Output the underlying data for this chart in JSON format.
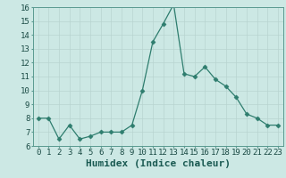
{
  "x": [
    0,
    1,
    2,
    3,
    4,
    5,
    6,
    7,
    8,
    9,
    10,
    11,
    12,
    13,
    14,
    15,
    16,
    17,
    18,
    19,
    20,
    21,
    22,
    23
  ],
  "y": [
    8.0,
    8.0,
    6.5,
    7.5,
    6.5,
    6.7,
    7.0,
    7.0,
    7.0,
    7.5,
    10.0,
    13.5,
    14.8,
    16.2,
    11.2,
    11.0,
    11.7,
    10.8,
    10.3,
    9.5,
    8.3,
    8.0,
    7.5,
    7.5
  ],
  "xlabel": "Humidex (Indice chaleur)",
  "ylim": [
    6,
    16
  ],
  "xlim_min": -0.5,
  "xlim_max": 23.5,
  "yticks": [
    6,
    7,
    8,
    9,
    10,
    11,
    12,
    13,
    14,
    15,
    16
  ],
  "xticks": [
    0,
    1,
    2,
    3,
    4,
    5,
    6,
    7,
    8,
    9,
    10,
    11,
    12,
    13,
    14,
    15,
    16,
    17,
    18,
    19,
    20,
    21,
    22,
    23
  ],
  "xtick_labels": [
    "0",
    "1",
    "2",
    "3",
    "4",
    "5",
    "6",
    "7",
    "8",
    "9",
    "10",
    "11",
    "12",
    "13",
    "14",
    "15",
    "16",
    "17",
    "18",
    "19",
    "20",
    "21",
    "22",
    "23"
  ],
  "line_color": "#2e7d6e",
  "marker": "D",
  "marker_size": 2.5,
  "bg_color": "#cce8e4",
  "grid_color": "#b8d4d0",
  "xlabel_fontsize": 8,
  "tick_fontsize": 6.5
}
